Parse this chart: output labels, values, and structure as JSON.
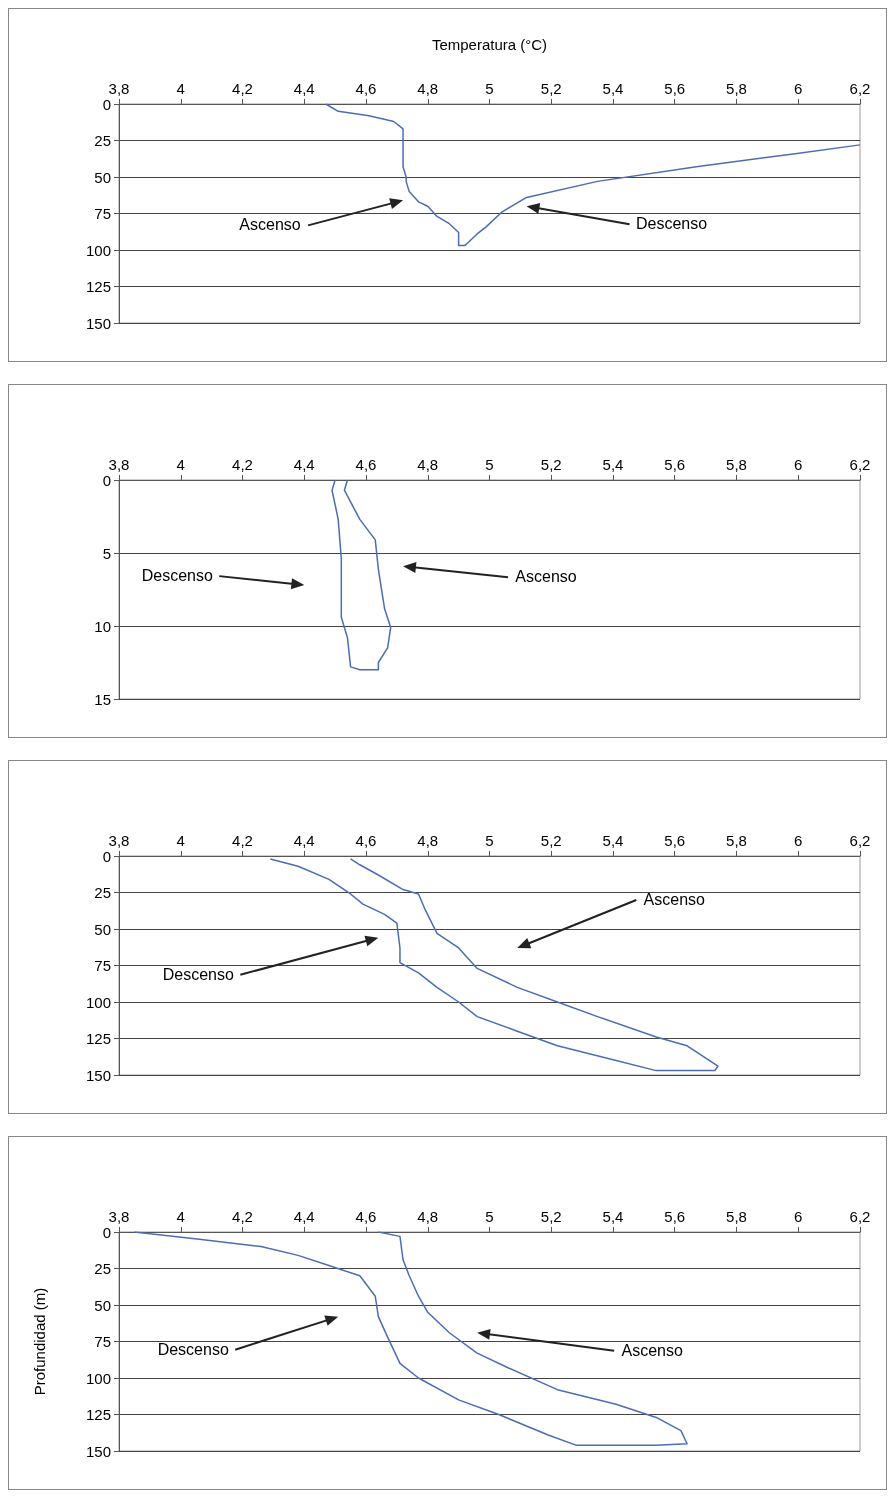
{
  "chart_data": [
    {
      "type": "line",
      "xlabel": "Temperatura (°C)",
      "xlim": [
        3.8,
        6.2
      ],
      "xticks": [
        {
          "value": 3.8,
          "label": "3,8"
        },
        {
          "value": 4,
          "label": "4"
        },
        {
          "value": 4.2,
          "label": "4,2"
        },
        {
          "value": 4.4,
          "label": "4,4"
        },
        {
          "value": 4.6,
          "label": "4,6"
        },
        {
          "value": 4.8,
          "label": "4,8"
        },
        {
          "value": 5,
          "label": "5"
        },
        {
          "value": 5.2,
          "label": "5,2"
        },
        {
          "value": 5.4,
          "label": "5,4"
        },
        {
          "value": 5.6,
          "label": "5,6"
        },
        {
          "value": 5.8,
          "label": "5,8"
        },
        {
          "value": 6,
          "label": "6"
        },
        {
          "value": 6.2,
          "label": "6,2"
        }
      ],
      "ylim": [
        150,
        0
      ],
      "yticks": [
        0,
        25,
        50,
        75,
        100,
        125,
        150
      ],
      "grid": "y",
      "marker": "none",
      "series": [
        {
          "color": "#4a6db5",
          "x": [
            6.2,
            5.99,
            5.67,
            5.35,
            5.12,
            5.04,
            4.99,
            4.96,
            4.93,
            4.92,
            4.9,
            4.9,
            4.87,
            4.83,
            4.8,
            4.77,
            4.74,
            4.73,
            4.73,
            4.72,
            4.72,
            4.72,
            4.69,
            4.61,
            4.51,
            4.47
          ],
          "values": [
            28,
            34,
            43,
            53,
            64,
            74,
            84,
            89,
            95,
            97,
            97,
            88,
            82,
            77,
            70,
            67,
            60,
            53,
            50,
            43,
            32,
            17,
            12,
            8,
            5,
            0
          ]
        }
      ],
      "annotations": [
        "Ascenso",
        "Descenso"
      ]
    },
    {
      "type": "line",
      "xlim": [
        3.8,
        6.2
      ],
      "xticks": [
        {
          "value": 3.8,
          "label": "3,8"
        },
        {
          "value": 4,
          "label": "4"
        },
        {
          "value": 4.2,
          "label": "4,2"
        },
        {
          "value": 4.4,
          "label": "4,4"
        },
        {
          "value": 4.6,
          "label": "4,6"
        },
        {
          "value": 4.8,
          "label": "4,8"
        },
        {
          "value": 5,
          "label": "5"
        },
        {
          "value": 5.2,
          "label": "5,2"
        },
        {
          "value": 5.4,
          "label": "5,4"
        },
        {
          "value": 5.6,
          "label": "5,6"
        },
        {
          "value": 5.8,
          "label": "5,8"
        },
        {
          "value": 6,
          "label": "6"
        },
        {
          "value": 6.2,
          "label": "6,2"
        }
      ],
      "ylim": [
        15,
        0
      ],
      "yticks": [
        0,
        5,
        10,
        15
      ],
      "grid": "y",
      "marker": "none",
      "series": [
        {
          "color": "#4a6db5",
          "x": [
            4.5,
            4.49,
            4.51,
            4.52,
            4.52,
            4.54,
            4.55,
            4.58,
            4.64,
            4.64,
            4.67,
            4.68,
            4.66,
            4.64,
            4.63,
            4.58,
            4.53,
            4.54
          ],
          "values": [
            0,
            0.7,
            2.7,
            5.4,
            9.4,
            10.8,
            12.8,
            13,
            13,
            12.5,
            11.5,
            10.1,
            8.8,
            6.1,
            4.1,
            2.7,
            0.7,
            0
          ]
        }
      ],
      "annotations": [
        "Descenso",
        "Ascenso"
      ]
    },
    {
      "type": "line",
      "xlim": [
        3.8,
        6.2
      ],
      "xticks": [
        {
          "value": 3.8,
          "label": "3,8"
        },
        {
          "value": 4,
          "label": "4"
        },
        {
          "value": 4.2,
          "label": "4,2"
        },
        {
          "value": 4.4,
          "label": "4,4"
        },
        {
          "value": 4.6,
          "label": "4,6"
        },
        {
          "value": 4.8,
          "label": "4,8"
        },
        {
          "value": 5,
          "label": "5"
        },
        {
          "value": 5.2,
          "label": "5,2"
        },
        {
          "value": 5.4,
          "label": "5,4"
        },
        {
          "value": 5.6,
          "label": "5,6"
        },
        {
          "value": 5.8,
          "label": "5,8"
        },
        {
          "value": 6,
          "label": "6"
        },
        {
          "value": 6.2,
          "label": "6,2"
        }
      ],
      "ylim": [
        150,
        0
      ],
      "yticks": [
        0,
        25,
        50,
        75,
        100,
        125,
        150
      ],
      "grid": "y",
      "marker": "none",
      "series": [
        {
          "color": "#4a6db5",
          "x": [
            4.29,
            4.38,
            4.48,
            4.55,
            4.59,
            4.66,
            4.7,
            4.71,
            4.71,
            4.77,
            4.83,
            4.9,
            4.96,
            5.09,
            5.22,
            5.41,
            5.54,
            5.73,
            5.74,
            5.64,
            5.54,
            5.35,
            5.22,
            5.09,
            4.96,
            4.9,
            4.83,
            4.79,
            4.77,
            4.72,
            4.64,
            4.58,
            4.55
          ],
          "values": [
            2,
            7,
            16,
            26,
            33,
            40,
            46,
            63,
            73,
            80,
            90,
            100,
            110,
            120,
            130,
            140,
            147,
            147,
            144,
            130,
            124,
            110,
            100,
            90,
            77,
            63,
            53,
            36,
            26,
            23,
            13,
            6,
            2
          ]
        }
      ],
      "annotations": [
        "Descenso",
        "Ascenso"
      ]
    },
    {
      "type": "line",
      "ylabel": "Profundidad (m)",
      "xlim": [
        3.8,
        6.2
      ],
      "xticks": [
        {
          "value": 3.8,
          "label": "3,8"
        },
        {
          "value": 4,
          "label": "4"
        },
        {
          "value": 4.2,
          "label": "4,2"
        },
        {
          "value": 4.4,
          "label": "4,4"
        },
        {
          "value": 4.6,
          "label": "4,6"
        },
        {
          "value": 4.8,
          "label": "4,8"
        },
        {
          "value": 5,
          "label": "5"
        },
        {
          "value": 5.2,
          "label": "5,2"
        },
        {
          "value": 5.4,
          "label": "5,4"
        },
        {
          "value": 5.6,
          "label": "5,6"
        },
        {
          "value": 5.8,
          "label": "5,8"
        },
        {
          "value": 6,
          "label": "6"
        },
        {
          "value": 6.2,
          "label": "6,2"
        }
      ],
      "ylim": [
        150,
        0
      ],
      "yticks": [
        0,
        25,
        50,
        75,
        100,
        125,
        150
      ],
      "grid": "y",
      "marker": "none",
      "series": [
        {
          "color": "#4a6db5",
          "x": [
            3.85,
            4.06,
            4.26,
            4.38,
            4.48,
            4.58,
            4.63,
            4.64,
            4.67,
            4.71,
            4.77,
            4.9,
            5.03,
            5.19,
            5.28,
            5.54,
            5.64,
            5.62,
            5.54,
            5.41,
            5.22,
            5.06,
            4.96,
            4.87,
            4.8,
            4.77,
            4.74,
            4.72,
            4.71,
            4.64
          ],
          "values": [
            0,
            5,
            10,
            16,
            23,
            30,
            44,
            58,
            72,
            90,
            100,
            115,
            125,
            139,
            146,
            146,
            145,
            136,
            127,
            118,
            108,
            93,
            83,
            69,
            55,
            44,
            30,
            19,
            3,
            0
          ]
        }
      ],
      "annotations": [
        "Descenso",
        "Ascenso"
      ]
    }
  ]
}
